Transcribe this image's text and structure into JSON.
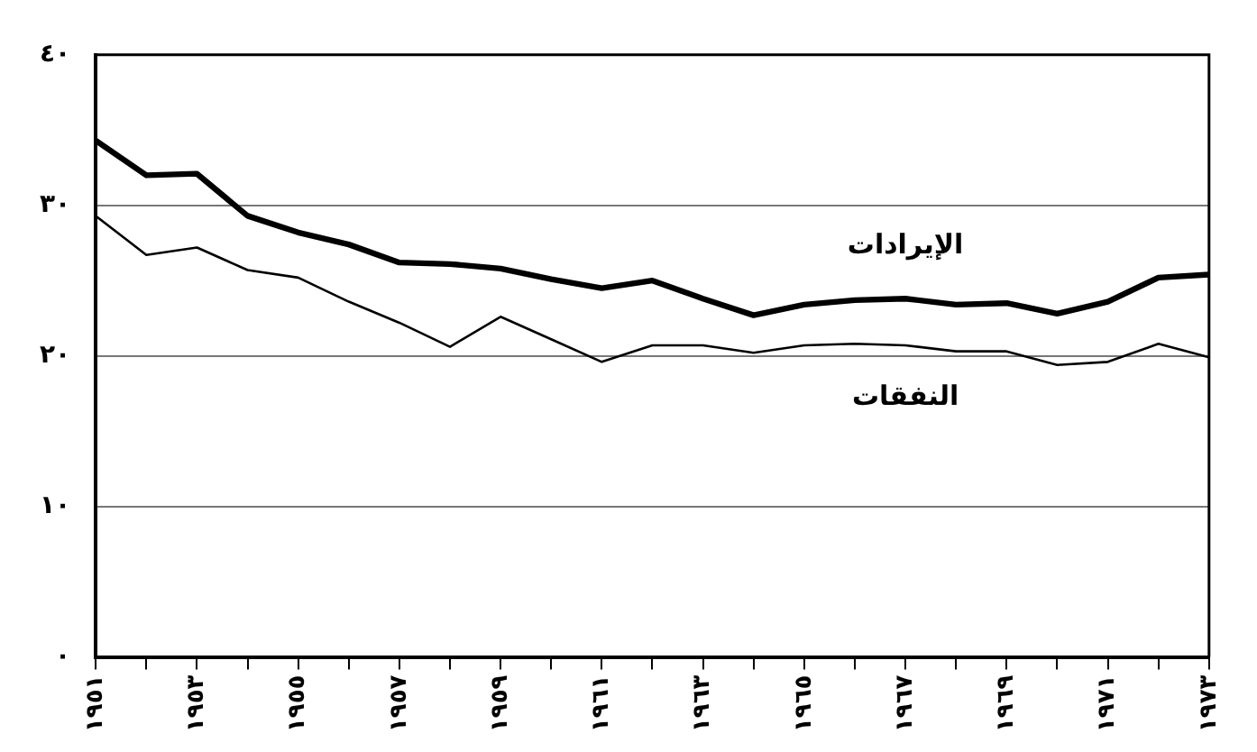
{
  "chart_data": {
    "type": "line",
    "categories": [
      "١٩٥١",
      null,
      "١٩٥٣",
      null,
      "١٩٥٥",
      null,
      "١٩٥٧",
      null,
      "١٩٥٩",
      null,
      "١٩٦١",
      null,
      "١٩٦٣",
      null,
      "١٩٦٥",
      null,
      "١٩٦٧",
      null,
      "١٩٦٩",
      null,
      "١٩٧١",
      null,
      "١٩٧٣"
    ],
    "series": [
      {
        "name": "الإيرادات",
        "color": "#000000",
        "values": [
          34.3,
          32.0,
          32.1,
          29.3,
          28.2,
          27.4,
          26.2,
          26.1,
          25.8,
          25.1,
          24.5,
          25.0,
          23.8,
          22.7,
          23.4,
          23.7,
          23.8,
          23.4,
          23.5,
          22.8,
          23.6,
          25.2,
          25.4
        ]
      },
      {
        "name": "النفقات",
        "color": "#000000",
        "values": [
          29.3,
          26.7,
          27.2,
          25.7,
          25.2,
          23.6,
          22.2,
          20.6,
          22.6,
          21.1,
          19.6,
          20.7,
          20.7,
          20.2,
          20.7,
          20.8,
          20.7,
          20.3,
          20.3,
          19.4,
          19.6,
          20.8,
          19.9
        ]
      }
    ],
    "ylim": [
      0,
      40
    ],
    "yticks": [
      {
        "value": 0,
        "label": "٠"
      },
      {
        "value": 10,
        "label": "١٠"
      },
      {
        "value": 20,
        "label": "٢٠"
      },
      {
        "value": 30,
        "label": "٣٠"
      },
      {
        "value": 40,
        "label": "٤٠"
      }
    ],
    "grid": "y",
    "legend": false,
    "marker": "none",
    "line_style": "solid"
  }
}
